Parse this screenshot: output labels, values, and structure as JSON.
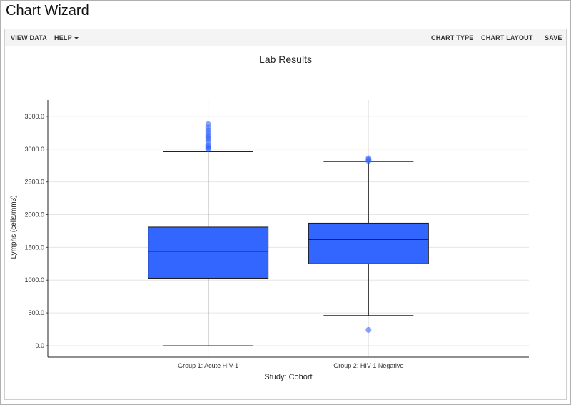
{
  "page": {
    "title": "Chart Wizard"
  },
  "toolbar": {
    "view_data": "VIEW DATA",
    "help": "HELP",
    "chart_type": "CHART TYPE",
    "chart_layout": "CHART LAYOUT",
    "save": "SAVE"
  },
  "chart_data": {
    "type": "box",
    "title": "Lab Results",
    "xlabel": "Study: Cohort",
    "ylabel": "Lymphs (cells/mm3)",
    "ylim": [
      -175,
      3750
    ],
    "yticks": [
      0,
      500,
      1000,
      1500,
      2000,
      2500,
      3000,
      3500
    ],
    "ytick_labels": [
      "0.0",
      "500.0",
      "1000.0",
      "1500.0",
      "2000.0",
      "2500.0",
      "3000.0",
      "3500.0"
    ],
    "grid": true,
    "colors": {
      "box": "#3366FF",
      "outlier": "#3366FF",
      "grid": "#e6e6e6",
      "line": "#222222"
    },
    "categories": [
      "Group 1: Acute HIV-1",
      "Group 2: HIV-1 Negative"
    ],
    "boxes": [
      {
        "category": "Group 1: Acute HIV-1",
        "min": 0,
        "q1": 1030,
        "median": 1440,
        "q3": 1810,
        "max": 2960,
        "outliers": [
          3000,
          3020,
          3040,
          3060,
          3110,
          3150,
          3180,
          3210,
          3250,
          3290,
          3330,
          3380
        ]
      },
      {
        "category": "Group 2: HIV-1 Negative",
        "min": 460,
        "q1": 1250,
        "median": 1620,
        "q3": 1870,
        "max": 2810,
        "outliers": [
          240,
          2820,
          2840,
          2860
        ]
      }
    ]
  }
}
